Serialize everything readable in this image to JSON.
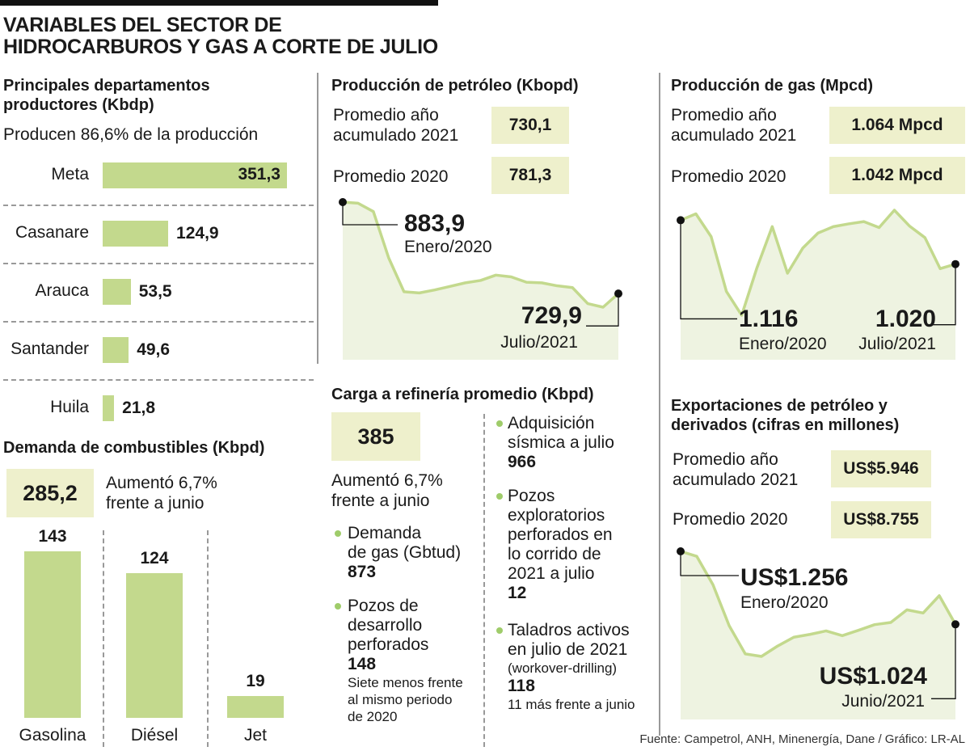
{
  "header": {
    "title_line1": "VARIABLES DEL SECTOR DE",
    "title_line2": "HIDROCARBUROS Y GAS A CORTE DE JULIO"
  },
  "departments": {
    "title_line1": "Principales departamentos",
    "title_line2": "productores (Kbdp)",
    "subtitle": "Producen 86,6% de la producción",
    "items": [
      {
        "name": "Meta",
        "value": 351.3,
        "label": "351,3"
      },
      {
        "name": "Casanare",
        "value": 124.9,
        "label": "124,9"
      },
      {
        "name": "Arauca",
        "value": 53.5,
        "label": "53,5"
      },
      {
        "name": "Santander",
        "value": 49.6,
        "label": "49,6"
      },
      {
        "name": "Huila",
        "value": 21.8,
        "label": "21,8"
      }
    ]
  },
  "fuel_demand": {
    "title": "Demanda de combustibles (Kbpd)",
    "total": "285,2",
    "note_line1": "Aumentó 6,7%",
    "note_line2": "frente a junio",
    "items": [
      {
        "name": "Gasolina",
        "value": 143,
        "label": "143"
      },
      {
        "name": "Diésel",
        "value": 124,
        "label": "124"
      },
      {
        "name": "Jet",
        "value": 19,
        "label": "19"
      }
    ]
  },
  "oil_production": {
    "title": "Producción de petróleo (Kbopd)",
    "avg_label_line1": "Promedio año",
    "avg_label_line2": "acumulado 2021",
    "avg_value": "730,1",
    "avg2020_label": "Promedio 2020",
    "avg2020_value": "781,3",
    "start_value": "883,9",
    "start_date": "Enero/2020",
    "end_value": "729,9",
    "end_date": "Julio/2021"
  },
  "gas_production": {
    "title": "Producción de gas (Mpcd)",
    "avg_label_line1": "Promedio año",
    "avg_label_line2": "acumulado 2021",
    "avg_value": "1.064 Mpcd",
    "avg2020_label": "Promedio 2020",
    "avg2020_value": "1.042 Mpcd",
    "start_value": "1.116",
    "start_date": "Enero/2020",
    "end_value": "1.020",
    "end_date": "Julio/2021"
  },
  "refinery": {
    "title": "Carga a refinería promedio (Kbpd)",
    "value": "385",
    "note_line1": "Aumentó 6,7%",
    "note_line2": "frente a junio",
    "gas_demand": {
      "l1": "Demanda",
      "l2": "de gas (Gbtud)",
      "value": "873"
    },
    "dev_wells": {
      "l1": "Pozos de",
      "l2": "desarrollo",
      "l3": "perforados",
      "value": "148",
      "n1": "Siete menos frente",
      "n2": "al mismo periodo",
      "n3": "de 2020"
    },
    "seismic": {
      "l1": "Adquisición",
      "l2": "sísmica a julio",
      "value": "966"
    },
    "expl_wells": {
      "l1": "Pozos",
      "l2": "exploratorios",
      "l3": "perforados en",
      "l4": "lo corrido de",
      "l5": "2021 a julio",
      "value": "12"
    },
    "rigs": {
      "l1": "Taladros activos",
      "l2": "en julio de 2021",
      "l3": "(workover-drilling)",
      "value": "118",
      "n1": "11 más frente a junio"
    }
  },
  "exports": {
    "title_line1": "Exportaciones de petróleo y",
    "title_line2": "derivados (cifras en millones)",
    "avg_label_line1": "Promedio año",
    "avg_label_line2": "acumulado 2021",
    "avg_value": "US$5.946",
    "avg2020_label": "Promedio 2020",
    "avg2020_value": "US$8.755",
    "start_value": "US$1.256",
    "start_date": "Enero/2020",
    "end_value": "US$1.024",
    "end_date": "Junio/2021"
  },
  "source": "Fuente: Campetrol, ANH, Minenergía, Dane / Gráfico: LR-AL",
  "colors": {
    "bar": "#c3d98d",
    "highlight": "#eef0cc",
    "line": "#c3d98d",
    "area": "#eef3e1"
  },
  "chart_data": [
    {
      "type": "bar",
      "title": "Principales departamentos productores (Kbdp)",
      "categories": [
        "Meta",
        "Casanare",
        "Arauca",
        "Santander",
        "Huila"
      ],
      "values": [
        351.3,
        124.9,
        53.5,
        49.6,
        21.8
      ]
    },
    {
      "type": "bar",
      "title": "Demanda de combustibles (Kbpd)",
      "categories": [
        "Gasolina",
        "Diésel",
        "Jet"
      ],
      "values": [
        143,
        124,
        19
      ]
    },
    {
      "type": "area",
      "title": "Producción de petróleo (Kbopd)",
      "x": [
        "Enero/2020",
        "",
        "",
        "",
        "",
        "",
        "",
        "",
        "",
        "",
        "",
        "",
        "",
        "",
        "",
        "",
        "",
        "",
        "Julio/2021"
      ],
      "values": [
        883.9,
        882,
        868,
        790,
        733,
        731,
        736,
        742,
        748,
        752,
        761,
        758,
        749,
        748,
        743,
        740,
        713,
        707,
        729.9
      ]
    },
    {
      "type": "area",
      "title": "Producción de gas (Mpcd)",
      "x": [
        "Enero/2020",
        "",
        "",
        "",
        "",
        "",
        "",
        "",
        "",
        "",
        "",
        "",
        "",
        "",
        "",
        "",
        "",
        "",
        "Julio/2021"
      ],
      "values": [
        1116,
        1130,
        1080,
        960,
        908,
        1012,
        1102,
        1000,
        1055,
        1088,
        1102,
        1108,
        1113,
        1100,
        1138,
        1103,
        1078,
        1010,
        1020
      ]
    },
    {
      "type": "area",
      "title": "Exportaciones de petróleo y derivados (cifras en millones)",
      "x": [
        "Enero/2020",
        "",
        "",
        "",
        "",
        "",
        "",
        "",
        "",
        "",
        "",
        "",
        "",
        "",
        "",
        "",
        "",
        "Junio/2021"
      ],
      "values": [
        1256,
        1240,
        1150,
        1020,
        930,
        922,
        955,
        983,
        992,
        1003,
        988,
        1005,
        1023,
        1030,
        1070,
        1060,
        1115,
        1024
      ]
    }
  ]
}
